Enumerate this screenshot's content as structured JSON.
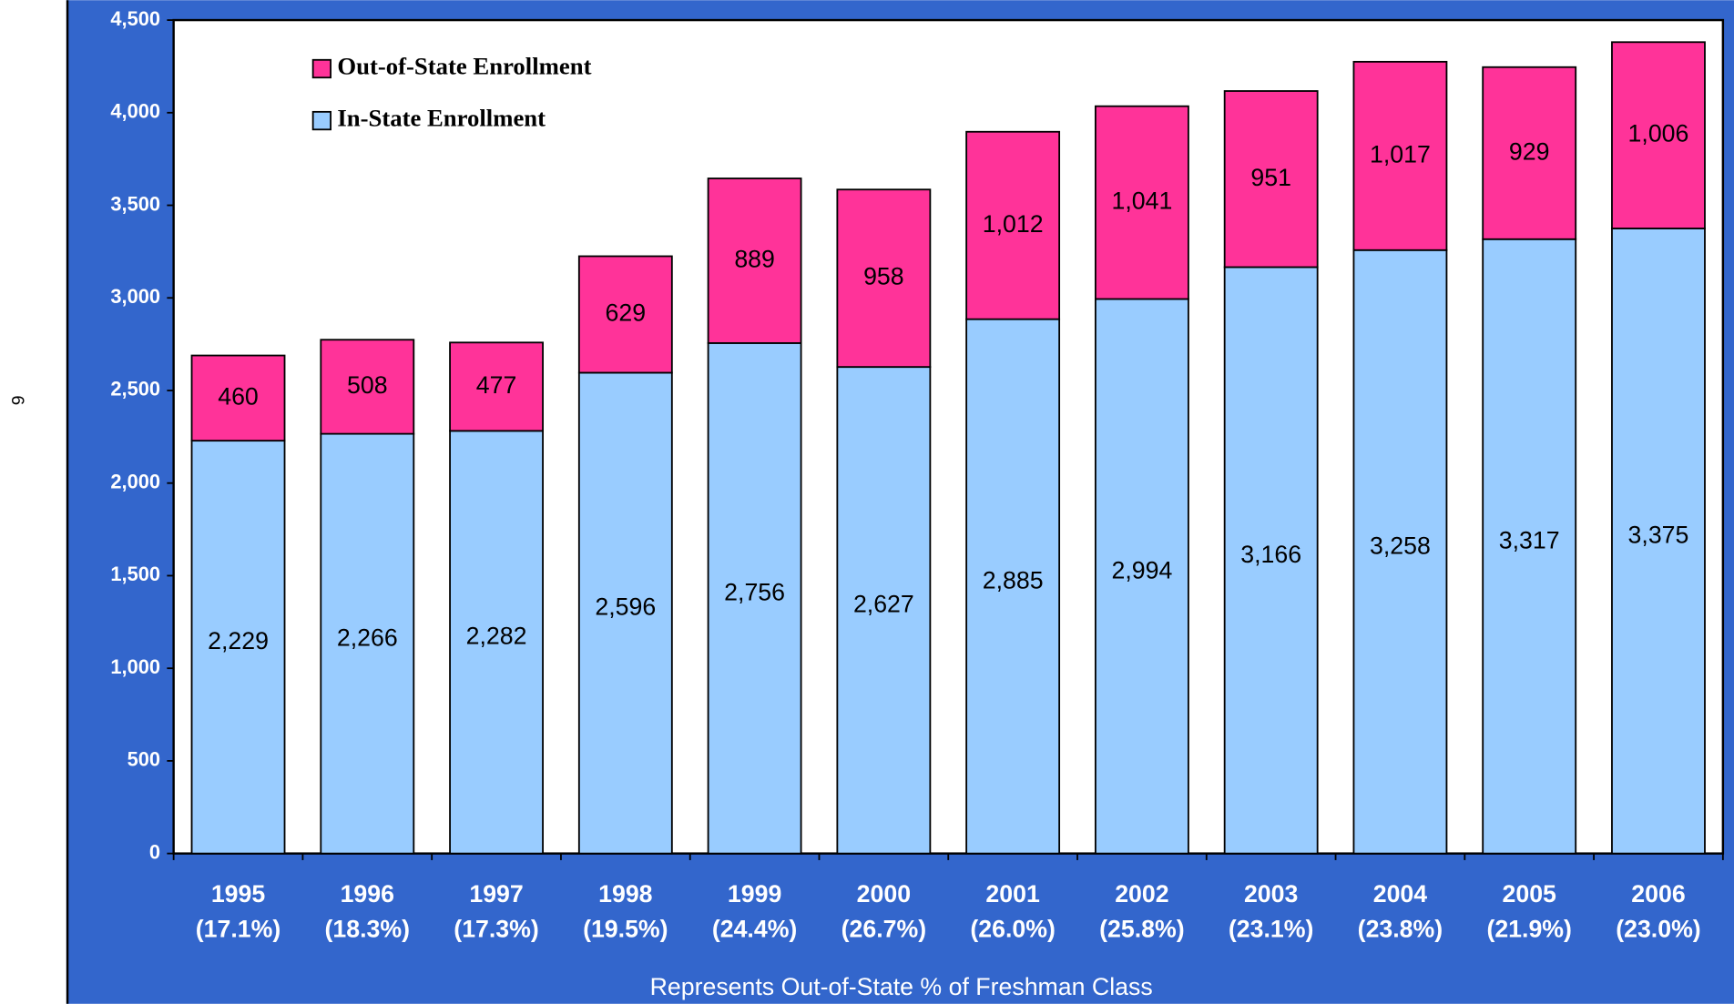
{
  "page_number": "6",
  "chart_data": {
    "type": "stacked-bar",
    "x_label": "Represents Out-of-State % of Freshman Class",
    "categories": [
      "1995",
      "1996",
      "1997",
      "1998",
      "1999",
      "2000",
      "2001",
      "2002",
      "2003",
      "2004",
      "2005",
      "2006"
    ],
    "category_notes": [
      "(17.1%)",
      "(18.3%)",
      "(17.3%)",
      "(19.5%)",
      "(24.4%)",
      "(26.7%)",
      "(26.0%)",
      "(25.8%)",
      "(23.1%)",
      "(23.8%)",
      "(21.9%)",
      "(23.0%)"
    ],
    "series": [
      {
        "name": "In-State Enrollment",
        "color": "#99ccff",
        "values": [
          2229,
          2266,
          2282,
          2596,
          2756,
          2627,
          2885,
          2994,
          3166,
          3258,
          3317,
          3375
        ],
        "value_labels": [
          "2,229",
          "2,266",
          "2,282",
          "2,596",
          "2,756",
          "2,627",
          "2,885",
          "2,994",
          "3,166",
          "3,258",
          "3,317",
          "3,375"
        ]
      },
      {
        "name": "Out-of-State Enrollment",
        "color": "#ff3399",
        "values": [
          460,
          508,
          477,
          629,
          889,
          958,
          1012,
          1041,
          951,
          1017,
          929,
          1006
        ],
        "value_labels": [
          "460",
          "508",
          "477",
          "629",
          "889",
          "958",
          "1,012",
          "1,041",
          "951",
          "1,017",
          "929",
          "1,006"
        ]
      }
    ],
    "legend_order": [
      1,
      0
    ],
    "ylim": [
      0,
      4500
    ],
    "yticks": [
      0,
      500,
      {
        "value": 1000,
        "label": "1,000"
      },
      {
        "value": 1500,
        "label": "1,500"
      },
      {
        "value": 2000,
        "label": "2,000"
      },
      {
        "value": 2500,
        "label": "2,500"
      },
      {
        "value": 3000,
        "label": "3,000"
      },
      {
        "value": 3500,
        "label": "3,500"
      },
      {
        "value": 4000,
        "label": "4,000"
      },
      {
        "value": 4500,
        "label": "4,500"
      }
    ]
  }
}
